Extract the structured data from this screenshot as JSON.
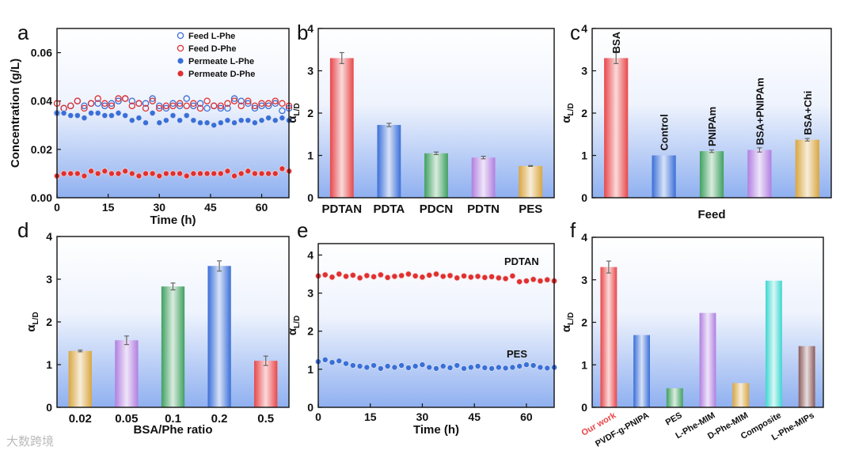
{
  "watermark": "大数跨境",
  "chart_data": [
    {
      "panel": "a",
      "type": "scatter",
      "xlabel": "Time (h)",
      "ylabel": "Concentration (g/L)",
      "xlim": [
        0,
        68
      ],
      "ylim": [
        0,
        0.07
      ],
      "xticks": [
        0,
        15,
        30,
        45,
        60
      ],
      "yticks": [
        0.0,
        0.02,
        0.04,
        0.06
      ],
      "ytick_labels": [
        "0.00",
        "0.02",
        "0.04",
        "0.06"
      ],
      "legend_position": "top-right",
      "series": [
        {
          "name": "Feed L-Phe",
          "color": "#3a6fd8",
          "filled": false,
          "x": [
            0,
            2,
            4,
            6,
            8,
            10,
            12,
            14,
            16,
            18,
            20,
            22,
            24,
            26,
            28,
            30,
            32,
            34,
            36,
            38,
            40,
            42,
            44,
            46,
            48,
            50,
            52,
            54,
            56,
            58,
            60,
            62,
            64,
            66,
            68
          ],
          "y": [
            0.035,
            0.037,
            0.038,
            0.04,
            0.038,
            0.039,
            0.039,
            0.038,
            0.039,
            0.04,
            0.041,
            0.04,
            0.039,
            0.039,
            0.041,
            0.038,
            0.037,
            0.039,
            0.038,
            0.041,
            0.038,
            0.039,
            0.037,
            0.038,
            0.037,
            0.037,
            0.041,
            0.04,
            0.039,
            0.037,
            0.038,
            0.038,
            0.039,
            0.036,
            0.037
          ]
        },
        {
          "name": "Feed D-Phe",
          "color": "#e03030",
          "filled": false,
          "x": [
            0,
            2,
            4,
            6,
            8,
            10,
            12,
            14,
            16,
            18,
            20,
            22,
            24,
            26,
            28,
            30,
            32,
            34,
            36,
            38,
            40,
            42,
            44,
            46,
            48,
            50,
            52,
            54,
            56,
            58,
            60,
            62,
            64,
            66,
            68
          ],
          "y": [
            0.039,
            0.037,
            0.038,
            0.04,
            0.037,
            0.039,
            0.041,
            0.039,
            0.038,
            0.041,
            0.041,
            0.038,
            0.039,
            0.037,
            0.04,
            0.037,
            0.038,
            0.038,
            0.039,
            0.038,
            0.039,
            0.037,
            0.04,
            0.038,
            0.038,
            0.039,
            0.04,
            0.038,
            0.04,
            0.038,
            0.039,
            0.039,
            0.04,
            0.039,
            0.038
          ]
        },
        {
          "name": "Permeate L-Phe",
          "color": "#3a6fd8",
          "filled": true,
          "x": [
            0,
            2,
            4,
            6,
            8,
            10,
            12,
            14,
            16,
            18,
            20,
            22,
            24,
            26,
            28,
            30,
            32,
            34,
            36,
            38,
            40,
            42,
            44,
            46,
            48,
            50,
            52,
            54,
            56,
            58,
            60,
            62,
            64,
            66,
            68
          ],
          "y": [
            0.035,
            0.035,
            0.034,
            0.034,
            0.033,
            0.035,
            0.035,
            0.034,
            0.034,
            0.035,
            0.034,
            0.032,
            0.033,
            0.031,
            0.035,
            0.031,
            0.032,
            0.034,
            0.032,
            0.034,
            0.032,
            0.031,
            0.031,
            0.03,
            0.031,
            0.032,
            0.031,
            0.032,
            0.032,
            0.031,
            0.032,
            0.033,
            0.032,
            0.033,
            0.032
          ]
        },
        {
          "name": "Permeate D-Phe",
          "color": "#e03030",
          "filled": true,
          "x": [
            0,
            2,
            4,
            6,
            8,
            10,
            12,
            14,
            16,
            18,
            20,
            22,
            24,
            26,
            28,
            30,
            32,
            34,
            36,
            38,
            40,
            42,
            44,
            46,
            48,
            50,
            52,
            54,
            56,
            58,
            60,
            62,
            64,
            66,
            68
          ],
          "y": [
            0.009,
            0.01,
            0.01,
            0.01,
            0.009,
            0.011,
            0.01,
            0.011,
            0.01,
            0.01,
            0.011,
            0.01,
            0.009,
            0.01,
            0.01,
            0.009,
            0.01,
            0.01,
            0.01,
            0.009,
            0.01,
            0.01,
            0.01,
            0.01,
            0.01,
            0.011,
            0.009,
            0.01,
            0.011,
            0.01,
            0.01,
            0.01,
            0.01,
            0.012,
            0.011
          ]
        }
      ]
    },
    {
      "panel": "b",
      "type": "bar",
      "xlabel": "",
      "ylabel": "αL/D",
      "ylabel_main": "α",
      "ylabel_sub": "L/D",
      "ylim": [
        0,
        4
      ],
      "yticks": [
        0,
        1,
        2,
        3,
        4
      ],
      "ytick_labels": [
        "0",
        "1",
        "2",
        "3",
        "4"
      ],
      "categories": [
        "PDTAN",
        "PDTA",
        "PDCN",
        "PDTN",
        "PES"
      ],
      "values": [
        3.3,
        1.72,
        1.05,
        0.95,
        0.75
      ],
      "errors": [
        0.13,
        0.04,
        0.03,
        0.03,
        0.01
      ],
      "colors": [
        "#e8474a",
        "#3a6fd8",
        "#3fa060",
        "#b07fe0",
        "#d9a640"
      ]
    },
    {
      "panel": "c",
      "type": "bar",
      "xlabel": "Feed",
      "ylabel": "αL/D",
      "ylabel_main": "α",
      "ylabel_sub": "L/D",
      "ylim": [
        0,
        4
      ],
      "yticks": [
        0,
        1,
        2,
        3,
        4
      ],
      "ytick_labels": [
        "0",
        "1",
        "2",
        "3",
        "4"
      ],
      "categories": [
        "BSA",
        "Control",
        "PNIPAm",
        "BSA+PNIPAm",
        "BSA+Chi"
      ],
      "category_label_style": "rotated-in-plot",
      "values": [
        3.3,
        1.0,
        1.1,
        1.13,
        1.37
      ],
      "errors": [
        0.13,
        0.0,
        0.03,
        0.05,
        0.03
      ],
      "colors": [
        "#e8474a",
        "#3a6fd8",
        "#3fa060",
        "#b07fe0",
        "#d9a640"
      ]
    },
    {
      "panel": "d",
      "type": "bar",
      "xlabel": "BSA/Phe ratio",
      "ylabel": "αL/D",
      "ylabel_main": "α",
      "ylabel_sub": "L/D",
      "ylim": [
        0,
        4
      ],
      "yticks": [
        0,
        1,
        2,
        3,
        4
      ],
      "ytick_labels": [
        "0",
        "1",
        "2",
        "3",
        "4"
      ],
      "categories": [
        "0.02",
        "0.05",
        "0.1",
        "0.2",
        "0.5"
      ],
      "values": [
        1.32,
        1.57,
        2.83,
        3.31,
        1.09
      ],
      "errors": [
        0.02,
        0.1,
        0.08,
        0.12,
        0.11
      ],
      "colors": [
        "#d9a640",
        "#b07fe0",
        "#3fa060",
        "#3a6fd8",
        "#e8474a"
      ]
    },
    {
      "panel": "e",
      "type": "scatter",
      "xlabel": "Time (h)",
      "ylabel": "αL/D",
      "ylabel_main": "α",
      "ylabel_sub": "L/D",
      "xlim": [
        0,
        68
      ],
      "ylim": [
        0,
        4.3
      ],
      "xticks": [
        0,
        15,
        30,
        45,
        60
      ],
      "yticks": [
        0,
        1,
        2,
        3,
        4
      ],
      "ytick_labels": [
        "0",
        "1",
        "2",
        "3",
        "4"
      ],
      "annotations": [
        "PDTAN",
        "PES"
      ],
      "series": [
        {
          "name": "PDTAN",
          "color": "#e03030",
          "filled": true,
          "x": [
            0,
            2,
            4,
            6,
            8,
            10,
            12,
            14,
            16,
            18,
            20,
            22,
            24,
            26,
            28,
            30,
            32,
            34,
            36,
            38,
            40,
            42,
            44,
            46,
            48,
            50,
            52,
            54,
            56,
            58,
            60,
            62,
            64,
            66,
            68
          ],
          "y": [
            3.45,
            3.48,
            3.42,
            3.5,
            3.44,
            3.47,
            3.4,
            3.46,
            3.43,
            3.48,
            3.41,
            3.44,
            3.46,
            3.5,
            3.45,
            3.42,
            3.47,
            3.5,
            3.44,
            3.46,
            3.4,
            3.45,
            3.42,
            3.44,
            3.41,
            3.43,
            3.4,
            3.38,
            3.45,
            3.3,
            3.32,
            3.36,
            3.32,
            3.35,
            3.32
          ]
        },
        {
          "name": "PES",
          "color": "#3a6fd8",
          "filled": true,
          "x": [
            0,
            2,
            4,
            6,
            8,
            10,
            12,
            14,
            16,
            18,
            20,
            22,
            24,
            26,
            28,
            30,
            32,
            34,
            36,
            38,
            40,
            42,
            44,
            46,
            48,
            50,
            52,
            54,
            56,
            58,
            60,
            62,
            64,
            66,
            68
          ],
          "y": [
            1.2,
            1.25,
            1.18,
            1.22,
            1.15,
            1.1,
            1.08,
            1.05,
            1.1,
            1.02,
            1.08,
            1.05,
            1.1,
            1.04,
            1.08,
            1.12,
            1.05,
            1.02,
            1.08,
            1.04,
            1.1,
            1.02,
            1.05,
            1.08,
            1.04,
            1.02,
            1.05,
            1.03,
            1.05,
            1.08,
            1.12,
            1.1,
            1.05,
            1.03,
            1.05
          ]
        }
      ]
    },
    {
      "panel": "f",
      "type": "bar",
      "xlabel": "",
      "ylabel": "αL/D",
      "ylabel_main": "α",
      "ylabel_sub": "L/D",
      "ylim": [
        0,
        4
      ],
      "yticks": [
        0,
        1,
        2,
        3,
        4
      ],
      "ytick_labels": [
        "0",
        "1",
        "2",
        "3",
        "4"
      ],
      "categories": [
        "Our work",
        "PVDF-g-PNIPA",
        "PES",
        "L-Phe-MIM",
        "D-Phe-MIM",
        "Composite",
        "L-Phe-MIPs"
      ],
      "category_label_style": "rotated-below",
      "highlight_category_color": "#e8474a",
      "values": [
        3.3,
        1.7,
        0.45,
        2.22,
        0.57,
        2.98,
        1.44
      ],
      "errors": [
        0.14,
        0,
        0,
        0,
        0,
        0,
        0
      ],
      "colors": [
        "#e8474a",
        "#3a6fd8",
        "#3fa060",
        "#b07fe0",
        "#d9a640",
        "#3dd6d0",
        "#8a5a5a"
      ]
    }
  ]
}
